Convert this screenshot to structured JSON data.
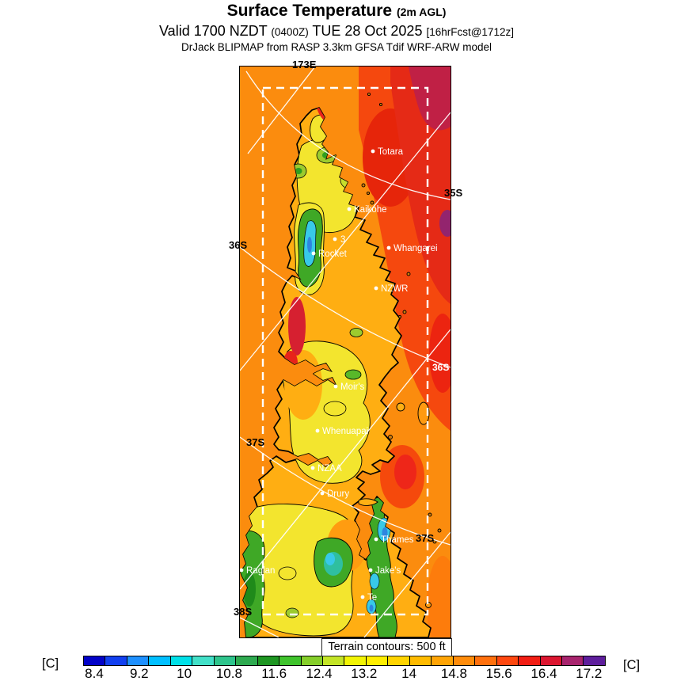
{
  "title": {
    "main": "Surface Temperature",
    "suffix": "(2m AGL)"
  },
  "subtitle": {
    "prefix": "Valid 1700 NZDT ",
    "zulu": "(0400Z)",
    "middle": " TUE 28 Oct 2025 ",
    "fcst": "[16hrFcst@1712z]"
  },
  "model_line": "DrJack BLIPMAP from RASP 3.3km GFSA Tdif WRF-ARW model",
  "map": {
    "sites": [
      {
        "label": "Totara"
      },
      {
        "label": "Kaikohe"
      },
      {
        "label": "3"
      },
      {
        "label": "Whangarei"
      },
      {
        "label": "Rocket"
      },
      {
        "label": "NZWR"
      },
      {
        "label": "Moir's"
      },
      {
        "label": "Whenuapai"
      },
      {
        "label": "NZAA"
      },
      {
        "label": "Drury"
      },
      {
        "label": "Thames"
      },
      {
        "label": "Jake's"
      },
      {
        "label": "Te"
      },
      {
        "label": "Raglan"
      }
    ],
    "grid_labels": {
      "lon_173e": "173E",
      "lat_35s_right": "35S",
      "lat_36s_left": "36S",
      "lat_36s_right": "36S",
      "lat_37s_left": "37S",
      "lat_37s_right": "37S",
      "lat_38s_left": "38S"
    },
    "annotation": "Terrain contours: 500 ft"
  },
  "colorbar": {
    "unit_left": "[C]",
    "unit_right": "[C]",
    "tick_labels": [
      "8.4",
      "9.2",
      "10",
      "10.8",
      "11.6",
      "12.4",
      "13.2",
      "14",
      "14.8",
      "15.6",
      "16.4",
      "17.2"
    ],
    "segment_colors": [
      "#0202C8",
      "#1240F0",
      "#1E90FF",
      "#00BFFF",
      "#00E0E8",
      "#42E0C8",
      "#2EC48C",
      "#2EAA50",
      "#1E9622",
      "#3FC32C",
      "#85CE2A",
      "#C3E426",
      "#F2F404",
      "#FFEE00",
      "#FFD400",
      "#FFBB00",
      "#FFA405",
      "#FF8C0A",
      "#FF700D",
      "#FF4810",
      "#F21E14",
      "#DC1630",
      "#A8246E",
      "#5E1E9C"
    ]
  },
  "chart_data": {
    "type": "heatmap",
    "title": "Surface Temperature (2m AGL)",
    "subtitle": "Valid 1700 NZDT (0400Z) TUE 28 Oct 2025 [16hrFcst@1712z]",
    "source": "DrJack BLIPMAP from RASP 3.3km GFSA Tdif WRF-ARW model",
    "units": "C",
    "colorbar_ticks": [
      8.4,
      9.2,
      10,
      10.8,
      11.6,
      12.4,
      13.2,
      14,
      14.8,
      15.6,
      16.4,
      17.2
    ],
    "tick_step": 0.8,
    "terrain_contour_interval_ft": 500,
    "grid_line_labels": [
      "173E",
      "35S",
      "36S",
      "37S",
      "38S"
    ],
    "stations": [
      "Totara",
      "Kaikohe",
      "3",
      "Whangarei",
      "Rocket",
      "NZWR",
      "Moir's",
      "Whenuapai",
      "NZAA",
      "Drury",
      "Thames",
      "Jake's",
      "Te",
      "Raglan"
    ],
    "field_summary": [
      {
        "area": "western sea (Tasman side)",
        "approx_C": 14.6
      },
      {
        "area": "northeastern sea",
        "approx_C": 16.0
      },
      {
        "area": "far northeast corner sea",
        "approx_C": 16.8
      },
      {
        "area": "small purple sea patch at right edge",
        "approx_C": 17.2
      },
      {
        "area": "land interior (yellow zones)",
        "approx_C": 13.4
      },
      {
        "area": "hot land spots: far north tip and mid west coast (red)",
        "approx_C": 15.8
      },
      {
        "area": "Kaikohe-west ranges green patch",
        "approx_C": 11.8
      },
      {
        "area": "cyan/blue cold cores (Waipoua, Coromandel ranges)",
        "approx_C": 10.2
      },
      {
        "area": "Coromandel / Kaimai green band with cyan cores",
        "approx_C": 11.5
      },
      {
        "area": "southwest corner hills near Raglan (green)",
        "approx_C": 11.8
      }
    ]
  }
}
